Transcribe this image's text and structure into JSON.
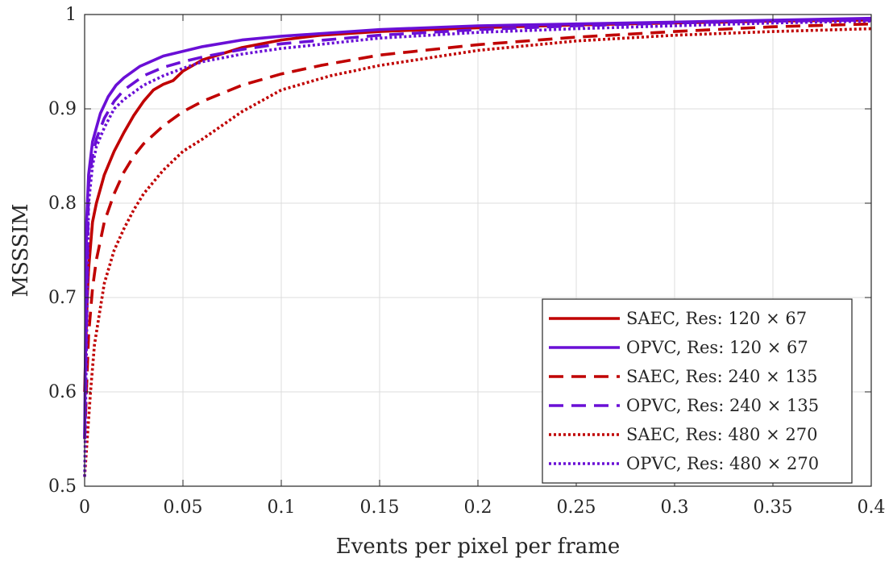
{
  "chart_data": {
    "type": "line",
    "title": "",
    "xlabel": "Events per pixel per frame",
    "ylabel": "MSSSIM",
    "xlim": [
      0,
      0.4
    ],
    "ylim": [
      0.5,
      1
    ],
    "grid": true,
    "legend_position": "bottom-right",
    "xticks": [
      {
        "value": 0,
        "label": "0"
      },
      {
        "value": 0.05,
        "label": "0.05"
      },
      {
        "value": 0.1,
        "label": "0.1"
      },
      {
        "value": 0.15,
        "label": "0.15"
      },
      {
        "value": 0.2,
        "label": "0.2"
      },
      {
        "value": 0.25,
        "label": "0.25"
      },
      {
        "value": 0.3,
        "label": "0.3"
      },
      {
        "value": 0.35,
        "label": "0.35"
      },
      {
        "value": 0.4,
        "label": "0.4"
      }
    ],
    "yticks": [
      {
        "value": 0.5,
        "label": "0.5"
      },
      {
        "value": 0.6,
        "label": "0.6"
      },
      {
        "value": 0.7,
        "label": "0.7"
      },
      {
        "value": 0.8,
        "label": "0.8"
      },
      {
        "value": 0.9,
        "label": "0.9"
      },
      {
        "value": 1,
        "label": "1"
      }
    ],
    "series": [
      {
        "name": "SAEC, Res: 120 × 67",
        "color": "#c00000",
        "style": "solid",
        "x": [
          0,
          0.001,
          0.002,
          0.004,
          0.006,
          0.01,
          0.015,
          0.02,
          0.025,
          0.03,
          0.035,
          0.04,
          0.045,
          0.05,
          0.06,
          0.08,
          0.1,
          0.12,
          0.15,
          0.2,
          0.25,
          0.3,
          0.35,
          0.4
        ],
        "y": [
          0.6,
          0.68,
          0.73,
          0.78,
          0.8,
          0.83,
          0.855,
          0.875,
          0.893,
          0.908,
          0.92,
          0.926,
          0.93,
          0.94,
          0.952,
          0.965,
          0.973,
          0.978,
          0.982,
          0.986,
          0.989,
          0.991,
          0.993,
          0.994
        ]
      },
      {
        "name": "OPVC, Res: 120 × 67",
        "color": "#6a0fd6",
        "style": "solid",
        "x": [
          0,
          0.001,
          0.002,
          0.004,
          0.006,
          0.008,
          0.012,
          0.016,
          0.02,
          0.028,
          0.04,
          0.06,
          0.08,
          0.1,
          0.15,
          0.2,
          0.25,
          0.3,
          0.35,
          0.4
        ],
        "y": [
          0.55,
          0.78,
          0.83,
          0.865,
          0.88,
          0.895,
          0.913,
          0.925,
          0.933,
          0.945,
          0.956,
          0.966,
          0.973,
          0.977,
          0.984,
          0.988,
          0.99,
          0.992,
          0.994,
          0.996
        ]
      },
      {
        "name": "SAEC, Res: 240 × 135",
        "color": "#c00000",
        "style": "dashed",
        "x": [
          0,
          0.002,
          0.004,
          0.006,
          0.01,
          0.015,
          0.02,
          0.025,
          0.03,
          0.04,
          0.05,
          0.06,
          0.08,
          0.1,
          0.12,
          0.15,
          0.2,
          0.25,
          0.3,
          0.35,
          0.4
        ],
        "y": [
          0.55,
          0.66,
          0.71,
          0.74,
          0.78,
          0.81,
          0.833,
          0.85,
          0.863,
          0.882,
          0.897,
          0.908,
          0.925,
          0.937,
          0.946,
          0.957,
          0.968,
          0.976,
          0.982,
          0.987,
          0.99
        ]
      },
      {
        "name": "OPVC, Res: 240 × 135",
        "color": "#6a0fd6",
        "style": "dashed",
        "x": [
          0,
          0.002,
          0.004,
          0.006,
          0.01,
          0.015,
          0.02,
          0.03,
          0.04,
          0.05,
          0.06,
          0.08,
          0.1,
          0.15,
          0.2,
          0.25,
          0.3,
          0.35,
          0.4
        ],
        "y": [
          0.55,
          0.82,
          0.85,
          0.868,
          0.89,
          0.908,
          0.92,
          0.935,
          0.944,
          0.95,
          0.955,
          0.963,
          0.969,
          0.978,
          0.984,
          0.988,
          0.991,
          0.993,
          0.994
        ]
      },
      {
        "name": "SAEC, Res: 480 × 270",
        "color": "#c00000",
        "style": "dotted",
        "x": [
          0,
          0.003,
          0.005,
          0.01,
          0.015,
          0.02,
          0.025,
          0.03,
          0.04,
          0.05,
          0.06,
          0.08,
          0.1,
          0.125,
          0.15,
          0.2,
          0.25,
          0.3,
          0.35,
          0.4
        ],
        "y": [
          0.51,
          0.6,
          0.65,
          0.715,
          0.75,
          0.773,
          0.793,
          0.81,
          0.835,
          0.855,
          0.868,
          0.897,
          0.92,
          0.935,
          0.946,
          0.962,
          0.972,
          0.978,
          0.982,
          0.985
        ]
      },
      {
        "name": "OPVC, Res: 480 × 270",
        "color": "#6a0fd6",
        "style": "dotted",
        "x": [
          0,
          0.002,
          0.004,
          0.006,
          0.01,
          0.015,
          0.02,
          0.03,
          0.04,
          0.05,
          0.06,
          0.08,
          0.1,
          0.15,
          0.2,
          0.25,
          0.3,
          0.35,
          0.4
        ],
        "y": [
          0.51,
          0.8,
          0.84,
          0.86,
          0.88,
          0.9,
          0.91,
          0.925,
          0.935,
          0.943,
          0.95,
          0.958,
          0.964,
          0.975,
          0.981,
          0.985,
          0.988,
          0.991,
          0.993
        ]
      }
    ]
  }
}
